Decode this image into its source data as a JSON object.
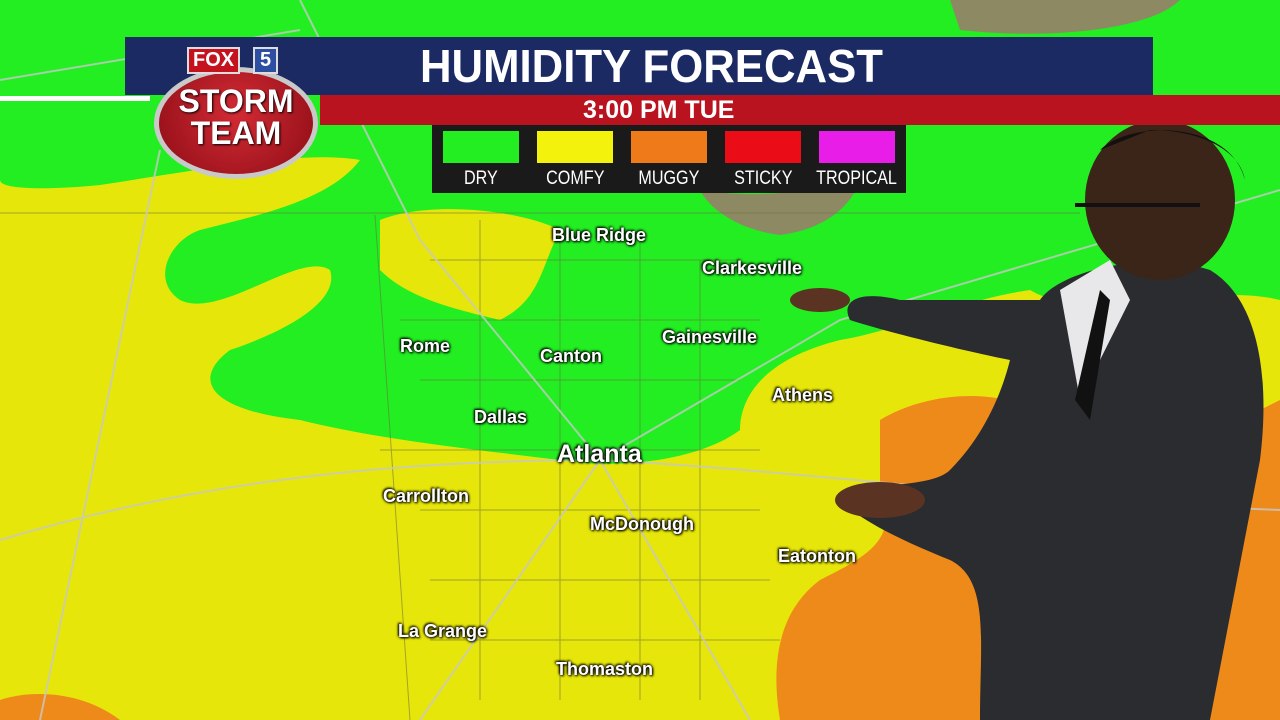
{
  "header": {
    "title": "HUMIDITY FORECAST",
    "time": "3:00 PM TUE"
  },
  "logo": {
    "network": "FOX",
    "channel": "5",
    "line1": "STORM",
    "line2": "TEAM"
  },
  "legend": [
    {
      "label": "DRY",
      "color": "#22ee22"
    },
    {
      "label": "COMFY",
      "color": "#f2f20c"
    },
    {
      "label": "MUGGY",
      "color": "#ee7a1a"
    },
    {
      "label": "STICKY",
      "color": "#ea0d17"
    },
    {
      "label": "TROPICAL",
      "color": "#e81ee8"
    }
  ],
  "cities": [
    "Blue Ridge",
    "Clarkesville",
    "Rome",
    "Canton",
    "Gainesville",
    "Athens",
    "Dallas",
    "Atlanta",
    "Carrollton",
    "McDonough",
    "Eatonton",
    "La Grange",
    "Thomaston"
  ]
}
